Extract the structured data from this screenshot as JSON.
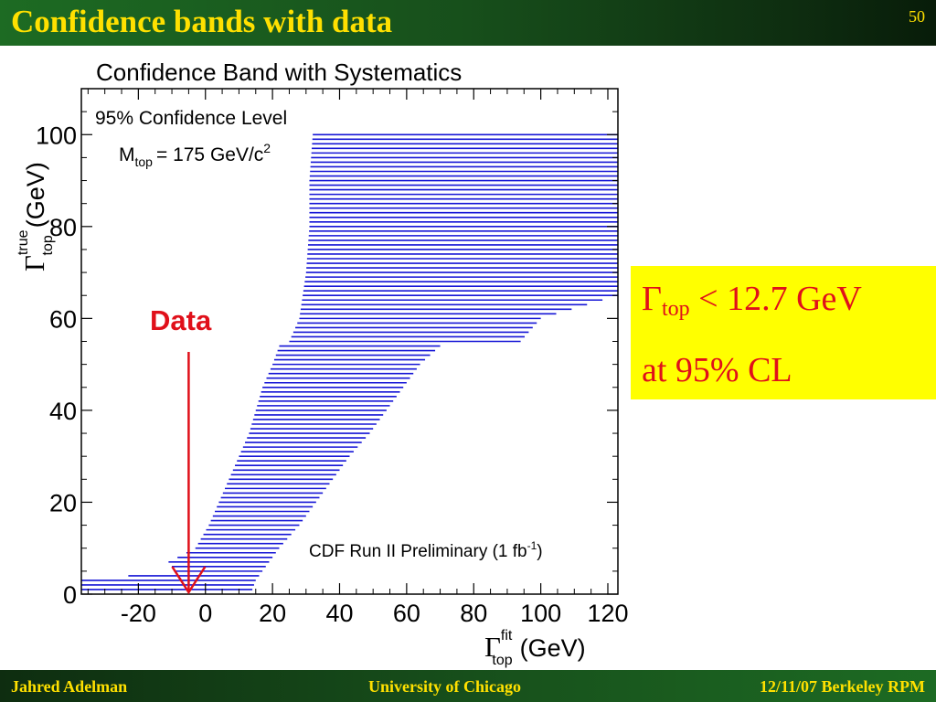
{
  "slide": {
    "title": "Confidence bands with data",
    "number": "50"
  },
  "footer": {
    "author": "Jahred Adelman",
    "institution": "University of Chicago",
    "date_event": "12/11/07 Berkeley RPM"
  },
  "result": {
    "symbol": "Γ",
    "subscript": "top",
    "limit": "< 12.7 GeV",
    "cl": "at 95% CL"
  },
  "colors": {
    "title_bar": "#174f1b",
    "title_text": "#ffe000",
    "band": "#1515d6",
    "data_arrow": "#e0101a",
    "result_box": "#ffff00",
    "result_text": "#e0101a"
  },
  "chart_data": {
    "type": "area",
    "title": "Confidence Band with Systematics",
    "annotations": {
      "cl_text": "95% Confidence Level",
      "mass_prefix": "M",
      "mass_sub": "top",
      "mass_value": "= 175 GeV/c",
      "mass_sup": "2",
      "preliminary": "CDF Run II Preliminary (1 fb",
      "preliminary_sup": "-1",
      "preliminary_end": ")",
      "data_label": "Data"
    },
    "xaxis": {
      "symbol": "Γ",
      "sup": "fit",
      "sub": "top",
      "unit": "(GeV)"
    },
    "yaxis": {
      "symbol": "Γ",
      "sup": "true",
      "sub": "top",
      "unit": "(GeV)"
    },
    "xlim": [
      -37,
      123
    ],
    "ylim": [
      0,
      110
    ],
    "xticks": [
      -20,
      0,
      20,
      40,
      60,
      80,
      100,
      120
    ],
    "yticks": [
      0,
      20,
      40,
      60,
      80,
      100
    ],
    "data_x": -5,
    "band_rows": [
      {
        "y": 1,
        "xmin": -37,
        "xmax": 14
      },
      {
        "y": 3,
        "xmin": -37,
        "xmax": 15
      },
      {
        "y": 5,
        "xmin": -9,
        "xmax": 17
      },
      {
        "y": 7,
        "xmin": -11,
        "xmax": 19
      },
      {
        "y": 10,
        "xmin": -3,
        "xmax": 22
      },
      {
        "y": 15,
        "xmin": 1,
        "xmax": 28
      },
      {
        "y": 20,
        "xmin": 4,
        "xmax": 33
      },
      {
        "y": 25,
        "xmin": 7,
        "xmax": 38
      },
      {
        "y": 30,
        "xmin": 10,
        "xmax": 43
      },
      {
        "y": 35,
        "xmin": 13,
        "xmax": 49
      },
      {
        "y": 40,
        "xmin": 15,
        "xmax": 54
      },
      {
        "y": 45,
        "xmin": 17,
        "xmax": 59
      },
      {
        "y": 50,
        "xmin": 20,
        "xmax": 64
      },
      {
        "y": 54,
        "xmin": 22,
        "xmax": 70
      },
      {
        "y": 55,
        "xmin": 25,
        "xmax": 94
      },
      {
        "y": 60,
        "xmin": 28,
        "xmax": 100
      },
      {
        "y": 65,
        "xmin": 29,
        "xmax": 123
      },
      {
        "y": 70,
        "xmin": 30,
        "xmax": 123
      },
      {
        "y": 80,
        "xmin": 31,
        "xmax": 123
      },
      {
        "y": 90,
        "xmin": 31,
        "xmax": 123
      },
      {
        "y": 100,
        "xmin": 32,
        "xmax": 123
      }
    ],
    "band_step": 1
  }
}
